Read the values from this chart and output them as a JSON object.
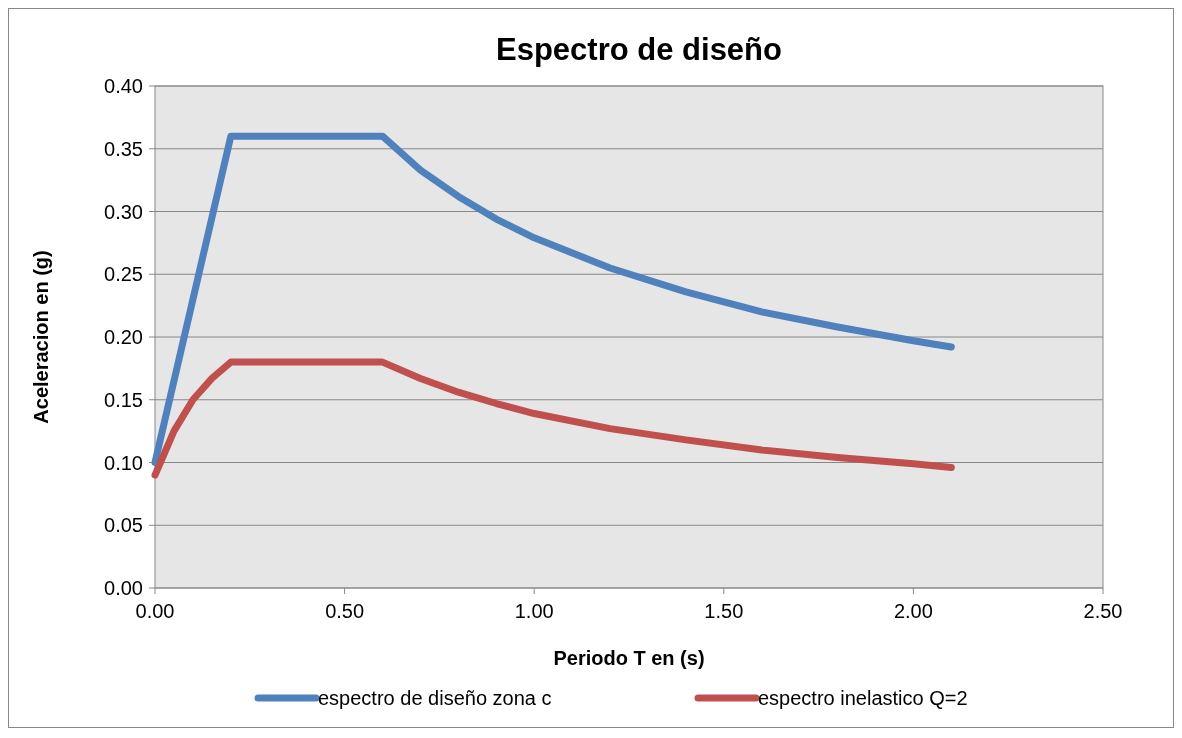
{
  "chart_data": {
    "type": "line",
    "title": "Espectro de diseño",
    "xlabel": "Periodo T en (s)",
    "ylabel": "Aceleracion en (g)",
    "xlim": [
      0,
      2.5
    ],
    "xticks": [
      {
        "value": 0,
        "label": "0.00"
      },
      {
        "value": 0.5,
        "label": "0.50"
      },
      {
        "value": 1,
        "label": "1.00"
      },
      {
        "value": 1.5,
        "label": "1.50"
      },
      {
        "value": 2,
        "label": "2.00"
      },
      {
        "value": 2.5,
        "label": "2.50"
      }
    ],
    "ylim": [
      0,
      0.4
    ],
    "yticks": [
      {
        "value": 0,
        "label": "0.00"
      },
      {
        "value": 0.05,
        "label": "0.05"
      },
      {
        "value": 0.1,
        "label": "0.10"
      },
      {
        "value": 0.15,
        "label": "0.15"
      },
      {
        "value": 0.2,
        "label": "0.20"
      },
      {
        "value": 0.25,
        "label": "0.25"
      },
      {
        "value": 0.3,
        "label": "0.30"
      },
      {
        "value": 0.35,
        "label": "0.35"
      },
      {
        "value": 0.4,
        "label": "0.40"
      }
    ],
    "grid": "y",
    "legend": "bottom",
    "marker": "none",
    "line_style": "solid",
    "series": [
      {
        "name": "espectro de diseño zona c",
        "color": "#4f81bd",
        "x": [
          0,
          0.2,
          0.6,
          0.7,
          0.8,
          0.9,
          1.0,
          1.2,
          1.4,
          1.6,
          1.8,
          2.0,
          2.1
        ],
        "values": [
          0.1,
          0.36,
          0.36,
          0.333,
          0.312,
          0.294,
          0.279,
          0.255,
          0.236,
          0.22,
          0.208,
          0.197,
          0.192
        ]
      },
      {
        "name": "espectro inelastico Q=2",
        "color": "#c0504d",
        "x": [
          0,
          0.05,
          0.1,
          0.15,
          0.2,
          0.6,
          0.7,
          0.8,
          0.9,
          1.0,
          1.2,
          1.4,
          1.6,
          1.8,
          2.0,
          2.1
        ],
        "values": [
          0.09,
          0.125,
          0.15,
          0.167,
          0.18,
          0.18,
          0.167,
          0.156,
          0.147,
          0.139,
          0.127,
          0.118,
          0.11,
          0.104,
          0.099,
          0.096
        ]
      }
    ]
  }
}
